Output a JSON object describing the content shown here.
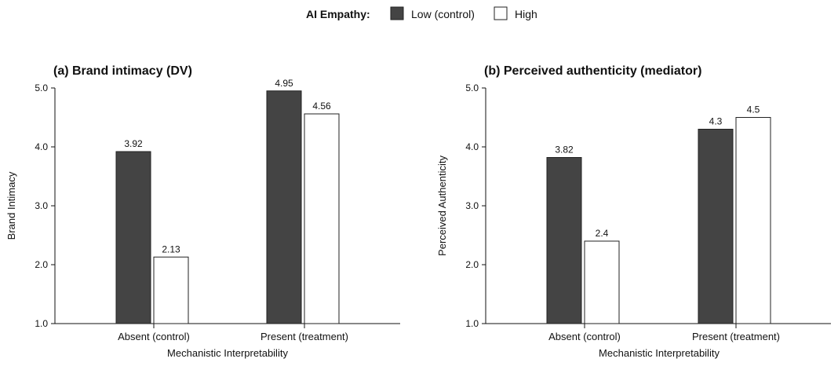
{
  "legend": {
    "title": "AI Empathy:",
    "items": [
      {
        "label": "Low (control)",
        "color": "#444444"
      },
      {
        "label": "High",
        "color": "#ffffff"
      }
    ]
  },
  "chart_data": [
    {
      "type": "bar",
      "title": "(a) Brand intimacy (DV)",
      "xlabel": "Mechanistic Interpretability",
      "ylabel": "Brand Intimacy",
      "categories": [
        "Absent (control)",
        "Present (treatment)"
      ],
      "series": [
        {
          "name": "Low (control)",
          "values": [
            3.92,
            4.95
          ]
        },
        {
          "name": "High",
          "values": [
            2.13,
            4.56
          ]
        }
      ],
      "ylim": [
        1.0,
        5.0
      ],
      "yticks": [
        "1.0",
        "2.0",
        "3.0",
        "4.0",
        "5.0"
      ],
      "grid": false,
      "legend_position": "top"
    },
    {
      "type": "bar",
      "title": "(b) Perceived authenticity (mediator)",
      "xlabel": "Mechanistic Interpretability",
      "ylabel": "Perceived Authenticity",
      "categories": [
        "Absent (control)",
        "Present (treatment)"
      ],
      "series": [
        {
          "name": "Low (control)",
          "values": [
            3.82,
            4.3
          ]
        },
        {
          "name": "High",
          "values": [
            2.4,
            4.5
          ]
        }
      ],
      "ylim": [
        1.0,
        5.0
      ],
      "yticks": [
        "1.0",
        "2.0",
        "3.0",
        "4.0",
        "5.0"
      ],
      "grid": false,
      "legend_position": "top"
    }
  ]
}
